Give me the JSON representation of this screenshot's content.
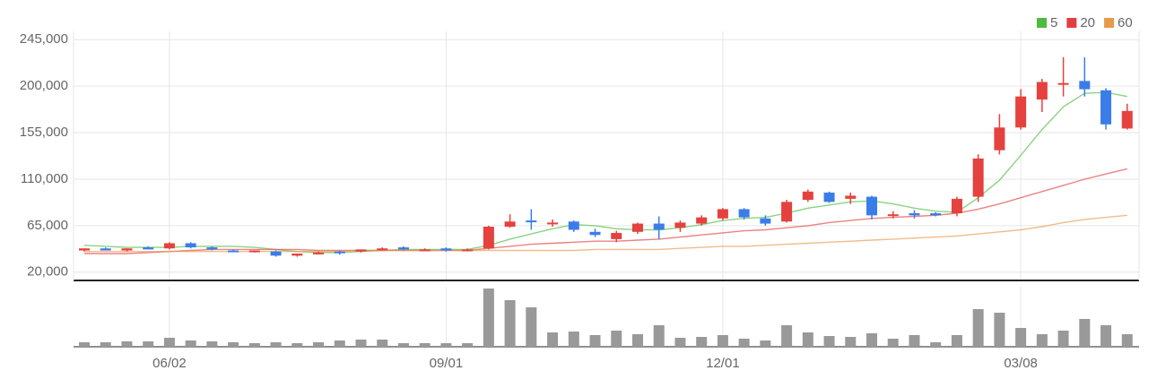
{
  "chart_data": {
    "type": "candlestick",
    "categories": [
      null,
      null,
      null,
      null,
      "06/02",
      null,
      null,
      null,
      null,
      null,
      null,
      null,
      null,
      null,
      null,
      null,
      null,
      "09/01",
      null,
      null,
      null,
      null,
      null,
      null,
      null,
      null,
      null,
      null,
      null,
      null,
      "12/01",
      null,
      null,
      null,
      null,
      null,
      null,
      null,
      null,
      null,
      null,
      null,
      null,
      null,
      "03/08",
      null,
      null,
      null,
      null,
      null
    ],
    "open": [
      41000,
      43000,
      41000,
      44000,
      43000,
      48000,
      44000,
      41000,
      40000,
      40000,
      36000,
      38000,
      40000,
      40000,
      42000,
      44000,
      42000,
      43000,
      41000,
      43000,
      64000,
      70000,
      67000,
      69000,
      59000,
      52000,
      59000,
      67000,
      63000,
      67000,
      72000,
      81000,
      72000,
      69000,
      90000,
      97000,
      91000,
      93000,
      75000,
      77000,
      77000,
      77000,
      93000,
      138000,
      160000,
      187000,
      202000,
      205000,
      196000,
      159000
    ],
    "high": [
      43000,
      44000,
      43000,
      45000,
      49000,
      49000,
      45000,
      42000,
      41000,
      41000,
      38000,
      40000,
      41000,
      42000,
      44000,
      45000,
      43000,
      44000,
      43000,
      65000,
      76000,
      81000,
      71000,
      70000,
      62000,
      60000,
      68000,
      74000,
      70000,
      75000,
      82000,
      82000,
      75000,
      90000,
      100000,
      98000,
      97000,
      94000,
      79000,
      80000,
      78000,
      93000,
      134000,
      173000,
      197000,
      207000,
      228000,
      228000,
      198000,
      183000
    ],
    "low": [
      40000,
      41000,
      40000,
      42000,
      42000,
      43000,
      41000,
      40000,
      39000,
      35000,
      35000,
      37000,
      37000,
      39000,
      41000,
      41000,
      41000,
      40000,
      40000,
      42000,
      63000,
      61000,
      64000,
      59000,
      54000,
      49000,
      57000,
      52000,
      59000,
      65000,
      70000,
      71000,
      65000,
      68000,
      88000,
      87000,
      86000,
      71000,
      72000,
      72000,
      74000,
      74000,
      88000,
      134000,
      158000,
      175000,
      190000,
      190000,
      158000,
      158000
    ],
    "close": [
      43000,
      41000,
      43000,
      42000,
      48000,
      44000,
      42000,
      40000,
      41000,
      36000,
      38000,
      39000,
      39000,
      42000,
      43000,
      42000,
      42000,
      41000,
      42000,
      64000,
      69000,
      69000,
      68000,
      61000,
      56000,
      58000,
      67000,
      61000,
      68000,
      73000,
      81000,
      73000,
      67000,
      88000,
      98000,
      88000,
      94000,
      75000,
      76000,
      75000,
      75000,
      91000,
      130000,
      160000,
      190000,
      204000,
      203000,
      197000,
      163000,
      176000
    ],
    "up_color": "#e5413e",
    "down_color": "#3b7de8",
    "series": [
      {
        "name": "5",
        "color": "#4cbb3f",
        "values": [
          46000,
          45000,
          44000,
          44000,
          44000,
          45000,
          45000,
          45000,
          44000,
          42000,
          40000,
          39000,
          39000,
          40000,
          41000,
          42000,
          42000,
          42000,
          42000,
          46000,
          52000,
          57000,
          62000,
          66000,
          65000,
          62000,
          61000,
          61000,
          63000,
          66000,
          70000,
          72000,
          73000,
          77000,
          82000,
          85000,
          88000,
          89000,
          86000,
          82000,
          79000,
          78000,
          92000,
          109000,
          133000,
          158000,
          180000,
          193000,
          194000,
          190000
        ]
      },
      {
        "name": "20",
        "color": "#e14040",
        "values": [
          38000,
          38000,
          38000,
          39000,
          40000,
          41000,
          42000,
          42000,
          42000,
          42000,
          42000,
          41000,
          41000,
          41000,
          41000,
          41000,
          41000,
          41000,
          41000,
          43000,
          45000,
          47000,
          48000,
          49000,
          50000,
          50000,
          51000,
          52000,
          54000,
          56000,
          58000,
          60000,
          61000,
          63000,
          65000,
          68000,
          70000,
          72000,
          73000,
          74000,
          75000,
          77000,
          81000,
          86000,
          92000,
          98000,
          104000,
          110000,
          115000,
          120000
        ]
      },
      {
        "name": "60",
        "color": "#e89a4a",
        "values": [
          40000,
          40000,
          40000,
          40000,
          40000,
          40000,
          40000,
          40000,
          40000,
          40000,
          40000,
          40000,
          40000,
          41000,
          41000,
          41000,
          41000,
          41000,
          41000,
          41000,
          41000,
          41000,
          41000,
          41000,
          42000,
          42000,
          42000,
          42000,
          43000,
          44000,
          45000,
          45000,
          46000,
          47000,
          48000,
          49000,
          50000,
          51000,
          52000,
          53000,
          54000,
          55000,
          57000,
          59000,
          61000,
          64000,
          68000,
          71000,
          73000,
          75000
        ]
      }
    ],
    "volume": {
      "color": "#999999",
      "values": [
        5,
        5,
        6,
        6,
        10,
        7,
        6,
        5,
        4,
        5,
        4,
        5,
        7,
        8,
        8,
        4,
        4,
        4,
        4,
        65,
        52,
        44,
        16,
        17,
        13,
        18,
        14,
        24,
        10,
        11,
        13,
        9,
        7,
        24,
        16,
        12,
        11,
        15,
        9,
        13,
        5,
        13,
        42,
        38,
        21,
        14,
        18,
        31,
        24,
        14
      ]
    },
    "ylim": [
      12000,
      253000
    ],
    "yticks": [
      {
        "value": 20000,
        "label": "20,000"
      },
      {
        "value": 65000,
        "label": "65,000"
      },
      {
        "value": 110000,
        "label": "110,000"
      },
      {
        "value": 155000,
        "label": "155,000"
      },
      {
        "value": 200000,
        "label": "200,000"
      },
      {
        "value": 245000,
        "label": "245,000"
      }
    ],
    "grid": true
  }
}
